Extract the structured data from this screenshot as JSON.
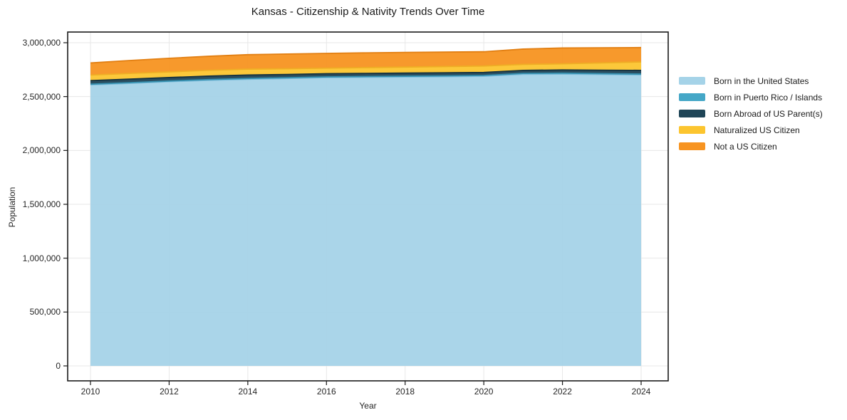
{
  "figure": {
    "background": "#ffffff",
    "title": "Kansas - Citizenship & Nativity Trends Over Time"
  },
  "chart_data": {
    "type": "area",
    "stacked": true,
    "title": "Kansas - Citizenship & Nativity Trends Over Time",
    "xlabel": "Year",
    "ylabel": "Population",
    "grid": true,
    "grid_color": "#e7e7e7",
    "spine_color": "#1a1a1a",
    "legend_position": "right-outside",
    "x": [
      2010,
      2011,
      2012,
      2013,
      2014,
      2015,
      2016,
      2017,
      2018,
      2019,
      2020,
      2021,
      2022,
      2023,
      2024
    ],
    "xticks": [
      2010,
      2012,
      2014,
      2016,
      2018,
      2020,
      2022,
      2024
    ],
    "yticks": [
      0,
      500000,
      1000000,
      1500000,
      2000000,
      2500000,
      3000000
    ],
    "ylim": [
      0,
      3100000
    ],
    "xlim": [
      2009.4,
      2024.7
    ],
    "series": [
      {
        "name": "Born in the United States",
        "color": "#a5d3e8",
        "edge_color": "#7fbedc",
        "values": [
          2609000,
          2623000,
          2638000,
          2651000,
          2661000,
          2668000,
          2676000,
          2679000,
          2682000,
          2685000,
          2689000,
          2707000,
          2709000,
          2705000,
          2701000
        ]
      },
      {
        "name": "Born in Puerto Rico / Islands",
        "color": "#45a7c7",
        "edge_color": "#3590af",
        "values": [
          6000,
          6000,
          6500,
          7000,
          7000,
          7000,
          7000,
          7000,
          7000,
          7000,
          7000,
          8000,
          8000,
          8000,
          8000
        ]
      },
      {
        "name": "Born Abroad of US Parent(s)",
        "color": "#1f4557",
        "edge_color": "#16323f",
        "values": [
          33000,
          33000,
          32000,
          32000,
          32000,
          30000,
          29000,
          29000,
          29000,
          29000,
          28000,
          28000,
          30000,
          32000,
          34000
        ]
      },
      {
        "name": "Naturalized US Citizen",
        "color": "#fcc52f",
        "edge_color": "#efad25",
        "values": [
          52000,
          53000,
          53000,
          54000,
          55000,
          54000,
          52000,
          54000,
          56000,
          58000,
          60000,
          56000,
          57000,
          68000,
          79000
        ]
      },
      {
        "name": "Not a US Citizen",
        "color": "#f79421",
        "edge_color": "#e27f12",
        "values": [
          112000,
          120000,
          126000,
          130000,
          134000,
          136000,
          137000,
          137000,
          136000,
          134000,
          132000,
          142000,
          147000,
          140000,
          133000
        ]
      }
    ]
  }
}
